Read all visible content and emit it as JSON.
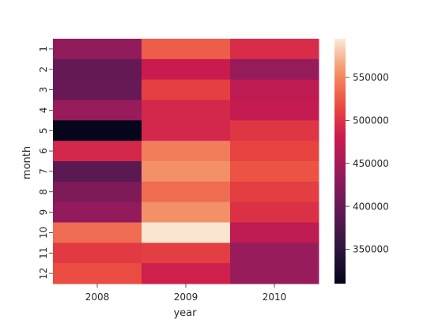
{
  "chart_data": {
    "type": "heatmap",
    "title": "",
    "xlabel": "year",
    "ylabel": "month",
    "x": [
      "2008",
      "2009",
      "2010"
    ],
    "y": [
      "1",
      "2",
      "3",
      "4",
      "5",
      "6",
      "7",
      "8",
      "9",
      "10",
      "11",
      "12"
    ],
    "values": [
      [
        435000,
        528000,
        495000
      ],
      [
        398000,
        480000,
        438000
      ],
      [
        400000,
        510000,
        470000
      ],
      [
        440000,
        490000,
        475000
      ],
      [
        312000,
        490000,
        502000
      ],
      [
        490000,
        545000,
        512000
      ],
      [
        390000,
        555000,
        522000
      ],
      [
        420000,
        535000,
        508000
      ],
      [
        435000,
        555000,
        498000
      ],
      [
        535000,
        592000,
        470000
      ],
      [
        505000,
        508000,
        440000
      ],
      [
        518000,
        485000,
        440000
      ]
    ],
    "colorbar": {
      "range": [
        310000,
        595000
      ],
      "ticks": [
        350000,
        400000,
        450000,
        500000,
        550000
      ],
      "tick_labels": [
        "350000",
        "400000",
        "450000",
        "500000",
        "550000"
      ]
    },
    "colormap": "rocket",
    "grid": false,
    "legend": "colorbar-right"
  }
}
